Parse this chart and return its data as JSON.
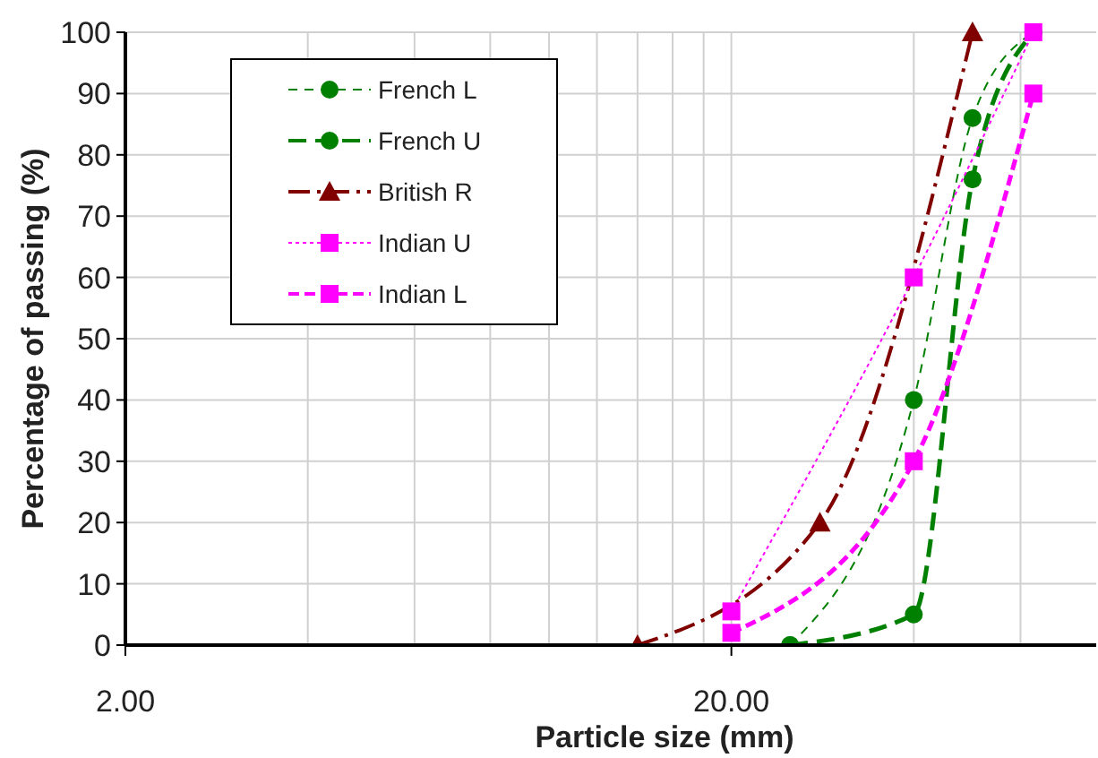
{
  "chart_data": {
    "type": "line",
    "xlabel": "Particle size (mm)",
    "ylabel": "Percentage of passing (%)",
    "log": "x",
    "xlim": [
      2,
      80
    ],
    "ylim": [
      0,
      100
    ],
    "xticks": [
      {
        "value": 2,
        "label": "2.00"
      },
      {
        "value": 4,
        "label": null
      },
      {
        "value": 6,
        "label": null
      },
      {
        "value": 8,
        "label": null
      },
      {
        "value": 10,
        "label": null
      },
      {
        "value": 12,
        "label": null
      },
      {
        "value": 14,
        "label": null
      },
      {
        "value": 16,
        "label": null
      },
      {
        "value": 18,
        "label": null
      },
      {
        "value": 20,
        "label": "20.00"
      },
      {
        "value": 40,
        "label": null
      },
      {
        "value": 60,
        "label": null
      }
    ],
    "yticks": [
      0,
      10,
      20,
      30,
      40,
      50,
      60,
      70,
      80,
      90,
      100
    ],
    "grid": true,
    "legend": "top left",
    "series": [
      {
        "name": "French L",
        "color": "#008000",
        "x": [
          25,
          40,
          50,
          63
        ],
        "values": [
          0,
          40,
          86,
          100
        ],
        "marker": "circle",
        "line_style": "dashed"
      },
      {
        "name": "French U",
        "color": "#008000",
        "x": [
          25,
          40,
          50,
          63
        ],
        "values": [
          0,
          5,
          76,
          100
        ],
        "marker": "circle",
        "line_style": "dashed"
      },
      {
        "name": "British R",
        "color": "#800000",
        "x": [
          14,
          28,
          50
        ],
        "values": [
          0,
          20,
          100
        ],
        "marker": "triangle",
        "line_style": "dashed"
      },
      {
        "name": "Indian U",
        "color": "#ff00ff",
        "x": [
          20,
          40,
          63
        ],
        "values": [
          5.5,
          60,
          100
        ],
        "marker": "square",
        "line_style": "dotted"
      },
      {
        "name": "Indian L",
        "color": "#ff00ff",
        "x": [
          20,
          40,
          63
        ],
        "values": [
          2,
          30,
          90
        ],
        "marker": "square",
        "line_style": "dashed"
      }
    ]
  }
}
